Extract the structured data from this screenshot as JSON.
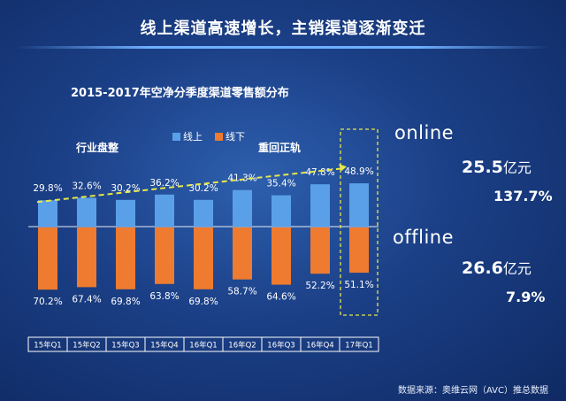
{
  "header": {
    "title": "线上渠道高速增长，主销渠道逐渐变迁"
  },
  "chart_data": {
    "type": "bar",
    "title": "2015-2017年空净分季度渠道零售额分布",
    "categories": [
      "15年Q1",
      "15年Q2",
      "15年Q3",
      "15年Q4",
      "16年Q1",
      "16年Q2",
      "16年Q3",
      "16年Q4",
      "17年Q1"
    ],
    "series": [
      {
        "name": "线上",
        "color": "#5aa0e8",
        "values": [
          29.8,
          32.6,
          30.2,
          36.2,
          30.2,
          41.3,
          35.4,
          47.8,
          48.9
        ],
        "labels": [
          "29.8%",
          "32.6%",
          "30.2%",
          "36.2%",
          "30.2%",
          "41.3%",
          "35.4%",
          "47.8%",
          "48.9%"
        ]
      },
      {
        "name": "线下",
        "color": "#ee7b30",
        "values": [
          70.2,
          67.4,
          69.8,
          63.8,
          69.8,
          58.7,
          64.6,
          52.2,
          51.1
        ],
        "labels": [
          "70.2%",
          "67.4%",
          "69.8%",
          "63.8%",
          "69.8%",
          "58.7%",
          "64.6%",
          "52.2%",
          "51.1%"
        ]
      }
    ],
    "annotations": [
      "行业盘整",
      "重回正轨"
    ],
    "trend_color": "#e8e84a",
    "highlight_category": "17年Q1"
  },
  "side": {
    "online_label": "online",
    "online_value": "25.5",
    "online_unit": "亿元",
    "online_growth": "137.7%",
    "offline_label": "offline",
    "offline_value": "26.6",
    "offline_unit": "亿元",
    "offline_growth": "7.9%"
  },
  "footer": {
    "source": "数据来源：奥维云网（AVC）推总数据"
  }
}
